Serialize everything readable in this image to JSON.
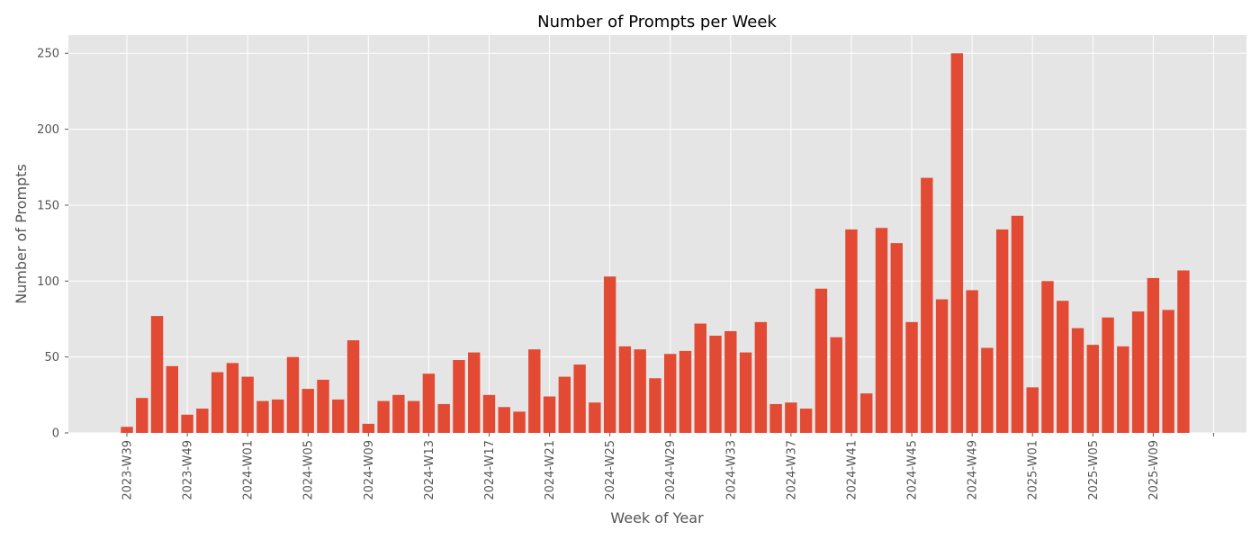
{
  "chart_data": {
    "type": "bar",
    "title": "Number of Prompts per Week",
    "xlabel": "Week of Year",
    "ylabel": "Number of Prompts",
    "xtick_every": 4,
    "xtick_labels": [
      "2023-W39",
      "2023-W49",
      "2024-W01",
      "2024-W05",
      "2024-W09",
      "2024-W13",
      "2024-W17",
      "2024-W21",
      "2024-W25",
      "2024-W29",
      "2024-W33",
      "2024-W37",
      "2024-W41",
      "2024-W45",
      "2024-W49",
      "2025-W01",
      "2025-W05",
      "2025-W09",
      ""
    ],
    "values": [
      4,
      23,
      77,
      44,
      12,
      16,
      40,
      46,
      37,
      21,
      22,
      50,
      29,
      35,
      22,
      61,
      6,
      21,
      25,
      21,
      39,
      19,
      48,
      53,
      25,
      17,
      14,
      55,
      24,
      37,
      45,
      20,
      103,
      57,
      55,
      36,
      52,
      54,
      72,
      64,
      67,
      53,
      73,
      19,
      20,
      16,
      95,
      63,
      134,
      26,
      135,
      125,
      73,
      168,
      88,
      250,
      94,
      56,
      134,
      143,
      30,
      100,
      87,
      69,
      58,
      76,
      57,
      80,
      102,
      81,
      107
    ],
    "yticks": [
      0,
      50,
      100,
      150,
      200,
      250
    ],
    "ylim": [
      0,
      262
    ],
    "grid": true,
    "style": "ggplot",
    "colors": {
      "bar": "#E24A33",
      "background": "#E5E5E5",
      "grid": "#FFFFFF"
    }
  }
}
